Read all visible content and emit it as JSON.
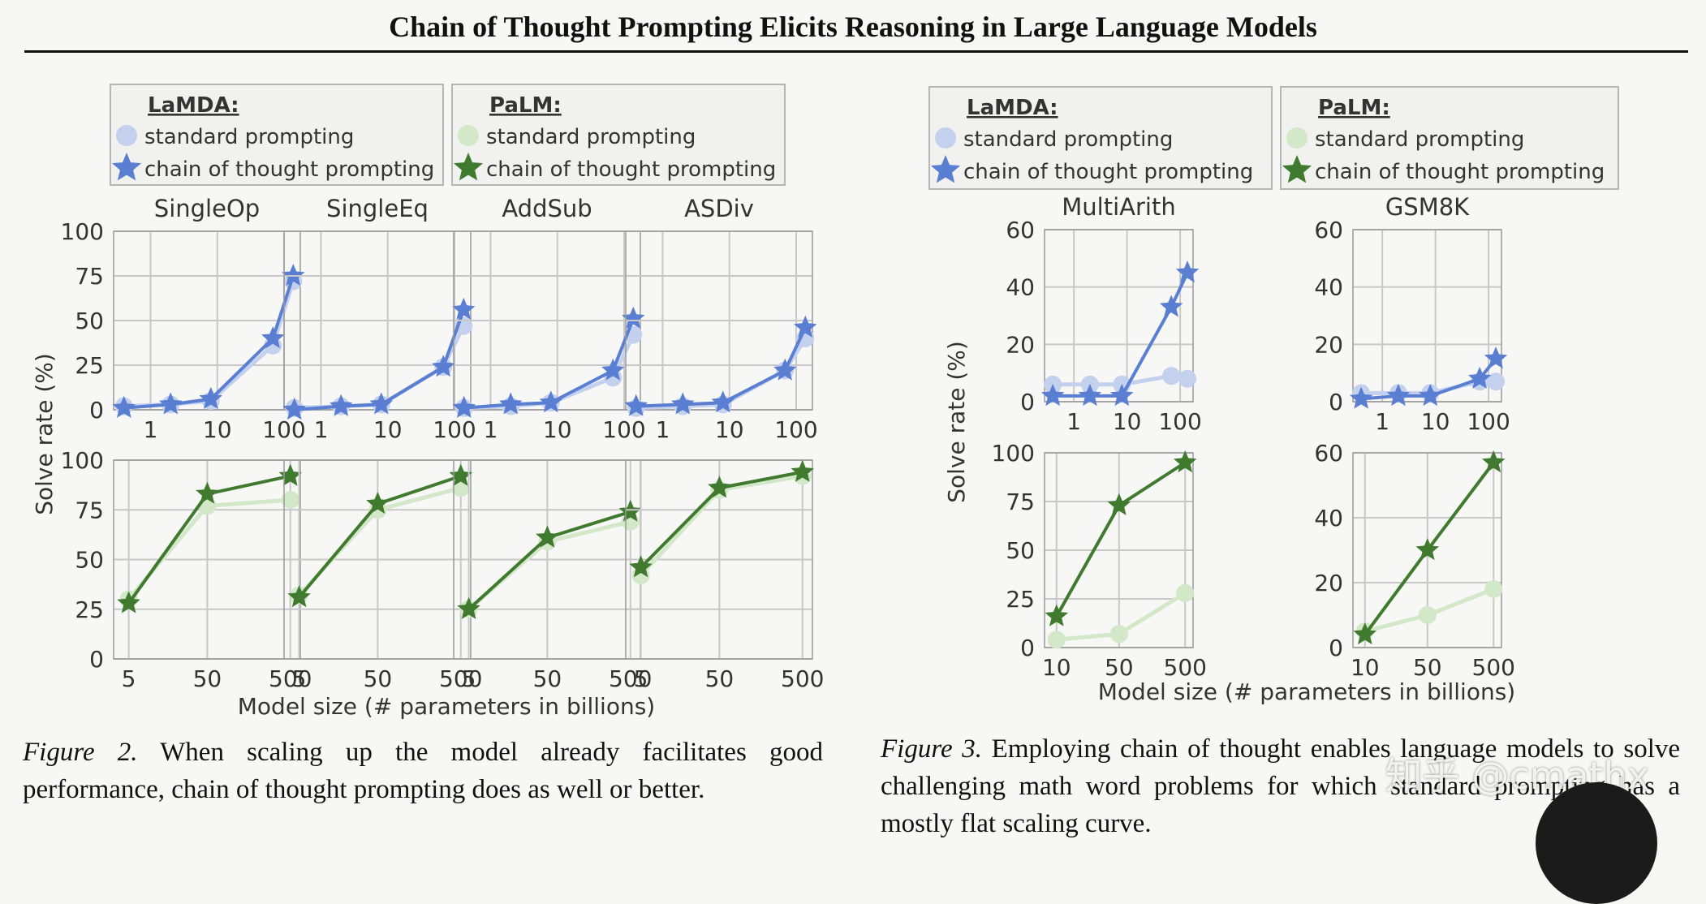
{
  "header": {
    "title": "Chain of Thought Prompting Elicits Reasoning in Large Language Models"
  },
  "legend_labels": {
    "lamda": "LaMDA:",
    "palm": "PaLM:",
    "standard": "standard prompting",
    "cot": "chain of thought prompting"
  },
  "colors": {
    "lamda_std": "#c3d0ee",
    "lamda_cot": "#5a7fd2",
    "palm_std": "#d2e8c8",
    "palm_cot": "#3f7a2e",
    "grid": "#c8c8c8",
    "frame": "#999999"
  },
  "chart_data": [
    {
      "type": "line",
      "x_scale": "log",
      "ylabel": "Solve rate (%)",
      "xlabel": "Model size (# parameters in billions)",
      "panels": [
        {
          "title": "SingleOp",
          "model": "LaMDA",
          "x": [
            0.4,
            2,
            8,
            68,
            137
          ],
          "xticks": [
            "1",
            "10",
            "100"
          ],
          "ylim": [
            0,
            100
          ],
          "yticks": [
            "0",
            "25",
            "50",
            "75",
            "100"
          ],
          "series": [
            {
              "name": "standard prompting",
              "values": [
                2,
                3,
                5,
                36,
                72
              ]
            },
            {
              "name": "chain of thought prompting",
              "values": [
                1,
                3,
                6,
                40,
                75
              ]
            }
          ]
        },
        {
          "title": "SingleEq",
          "model": "LaMDA",
          "x": [
            0.4,
            2,
            8,
            68,
            137
          ],
          "xticks": [
            "1",
            "10",
            "100"
          ],
          "ylim": [
            0,
            100
          ],
          "series": [
            {
              "name": "standard prompting",
              "values": [
                1,
                2,
                3,
                24,
                47
              ]
            },
            {
              "name": "chain of thought prompting",
              "values": [
                0,
                2,
                3,
                24,
                56
              ]
            }
          ]
        },
        {
          "title": "AddSub",
          "model": "LaMDA",
          "x": [
            0.4,
            2,
            8,
            68,
            137
          ],
          "xticks": [
            "1",
            "10",
            "100"
          ],
          "ylim": [
            0,
            100
          ],
          "series": [
            {
              "name": "standard prompting",
              "values": [
                1,
                2,
                4,
                18,
                42
              ]
            },
            {
              "name": "chain of thought prompting",
              "values": [
                1,
                3,
                4,
                22,
                51
              ]
            }
          ]
        },
        {
          "title": "ASDiv",
          "model": "LaMDA",
          "x": [
            0.4,
            2,
            8,
            68,
            137
          ],
          "xticks": [
            "1",
            "10",
            "100"
          ],
          "ylim": [
            0,
            100
          ],
          "series": [
            {
              "name": "standard prompting",
              "values": [
                1,
                2,
                3,
                22,
                40
              ]
            },
            {
              "name": "chain of thought prompting",
              "values": [
                2,
                3,
                4,
                22,
                46
              ]
            }
          ]
        },
        {
          "title": "",
          "model": "PaLM",
          "x": [
            8,
            62,
            540
          ],
          "xticks": [
            "5",
            "50",
            "500"
          ],
          "ylim": [
            0,
            100
          ],
          "yticks": [
            "0",
            "25",
            "50",
            "75",
            "100"
          ],
          "series": [
            {
              "name": "standard prompting",
              "values": [
                30,
                77,
                80
              ]
            },
            {
              "name": "chain of thought prompting",
              "values": [
                28,
                83,
                92
              ]
            }
          ]
        },
        {
          "title": "",
          "model": "PaLM",
          "x": [
            8,
            62,
            540
          ],
          "xticks": [
            "5",
            "50",
            "500"
          ],
          "ylim": [
            0,
            100
          ],
          "series": [
            {
              "name": "standard prompting",
              "values": [
                32,
                75,
                86
              ]
            },
            {
              "name": "chain of thought prompting",
              "values": [
                31,
                78,
                92
              ]
            }
          ]
        },
        {
          "title": "",
          "model": "PaLM",
          "x": [
            8,
            62,
            540
          ],
          "xticks": [
            "5",
            "50",
            "500"
          ],
          "ylim": [
            0,
            100
          ],
          "series": [
            {
              "name": "standard prompting",
              "values": [
                25,
                59,
                69
              ]
            },
            {
              "name": "chain of thought prompting",
              "values": [
                25,
                61,
                74
              ]
            }
          ]
        },
        {
          "title": "",
          "model": "PaLM",
          "x": [
            8,
            62,
            540
          ],
          "xticks": [
            "5",
            "50",
            "500"
          ],
          "ylim": [
            0,
            100
          ],
          "series": [
            {
              "name": "standard prompting",
              "values": [
                42,
                85,
                92
              ]
            },
            {
              "name": "chain of thought prompting",
              "values": [
                46,
                86,
                94
              ]
            }
          ]
        }
      ]
    },
    {
      "type": "line",
      "x_scale": "log",
      "ylabel": "Solve rate (%)",
      "xlabel": "Model size (# parameters in billions)",
      "panels": [
        {
          "title": "MultiArith",
          "model": "LaMDA",
          "x": [
            0.4,
            2,
            8,
            68,
            137
          ],
          "xticks": [
            "1",
            "10",
            "100"
          ],
          "ylim": [
            0,
            60
          ],
          "yticks": [
            "0",
            "20",
            "40",
            "60"
          ],
          "series": [
            {
              "name": "standard prompting",
              "values": [
                6,
                6,
                6,
                9,
                8
              ]
            },
            {
              "name": "chain of thought prompting",
              "values": [
                2,
                2,
                2,
                33,
                45
              ]
            }
          ]
        },
        {
          "title": "GSM8K",
          "model": "LaMDA",
          "x": [
            0.4,
            2,
            8,
            68,
            137
          ],
          "xticks": [
            "1",
            "10",
            "100"
          ],
          "ylim": [
            0,
            60
          ],
          "yticks": [
            "0",
            "20",
            "40",
            "60"
          ],
          "series": [
            {
              "name": "standard prompting",
              "values": [
                3,
                3,
                3,
                7,
                7
              ]
            },
            {
              "name": "chain of thought prompting",
              "values": [
                1,
                2,
                2,
                8,
                15
              ]
            }
          ]
        },
        {
          "title": "",
          "model": "PaLM",
          "x": [
            8,
            62,
            540
          ],
          "xticks": [
            "10",
            "50",
            "500"
          ],
          "ylim": [
            0,
            100
          ],
          "yticks": [
            "0",
            "25",
            "50",
            "75",
            "100"
          ],
          "series": [
            {
              "name": "standard prompting",
              "values": [
                4,
                7,
                28
              ]
            },
            {
              "name": "chain of thought prompting",
              "values": [
                16,
                73,
                95
              ]
            }
          ]
        },
        {
          "title": "",
          "model": "PaLM",
          "x": [
            8,
            62,
            540
          ],
          "xticks": [
            "10",
            "50",
            "500"
          ],
          "ylim": [
            0,
            60
          ],
          "yticks": [
            "0",
            "20",
            "40",
            "60"
          ],
          "series": [
            {
              "name": "standard prompting",
              "values": [
                5,
                10,
                18
              ]
            },
            {
              "name": "chain of thought prompting",
              "values": [
                4,
                30,
                57
              ]
            }
          ]
        }
      ]
    }
  ],
  "captions": {
    "fig2_label": "Figure 2.",
    "fig2_text": "When scaling up the model already facilitates good performance, chain of thought prompting does as well or better.",
    "fig3_label": "Figure 3.",
    "fig3_text": "Employing chain of thought enables language models to solve challenging math word problems for which standard prompting has a mostly flat scaling curve."
  },
  "watermark": "知乎 @cmathx"
}
